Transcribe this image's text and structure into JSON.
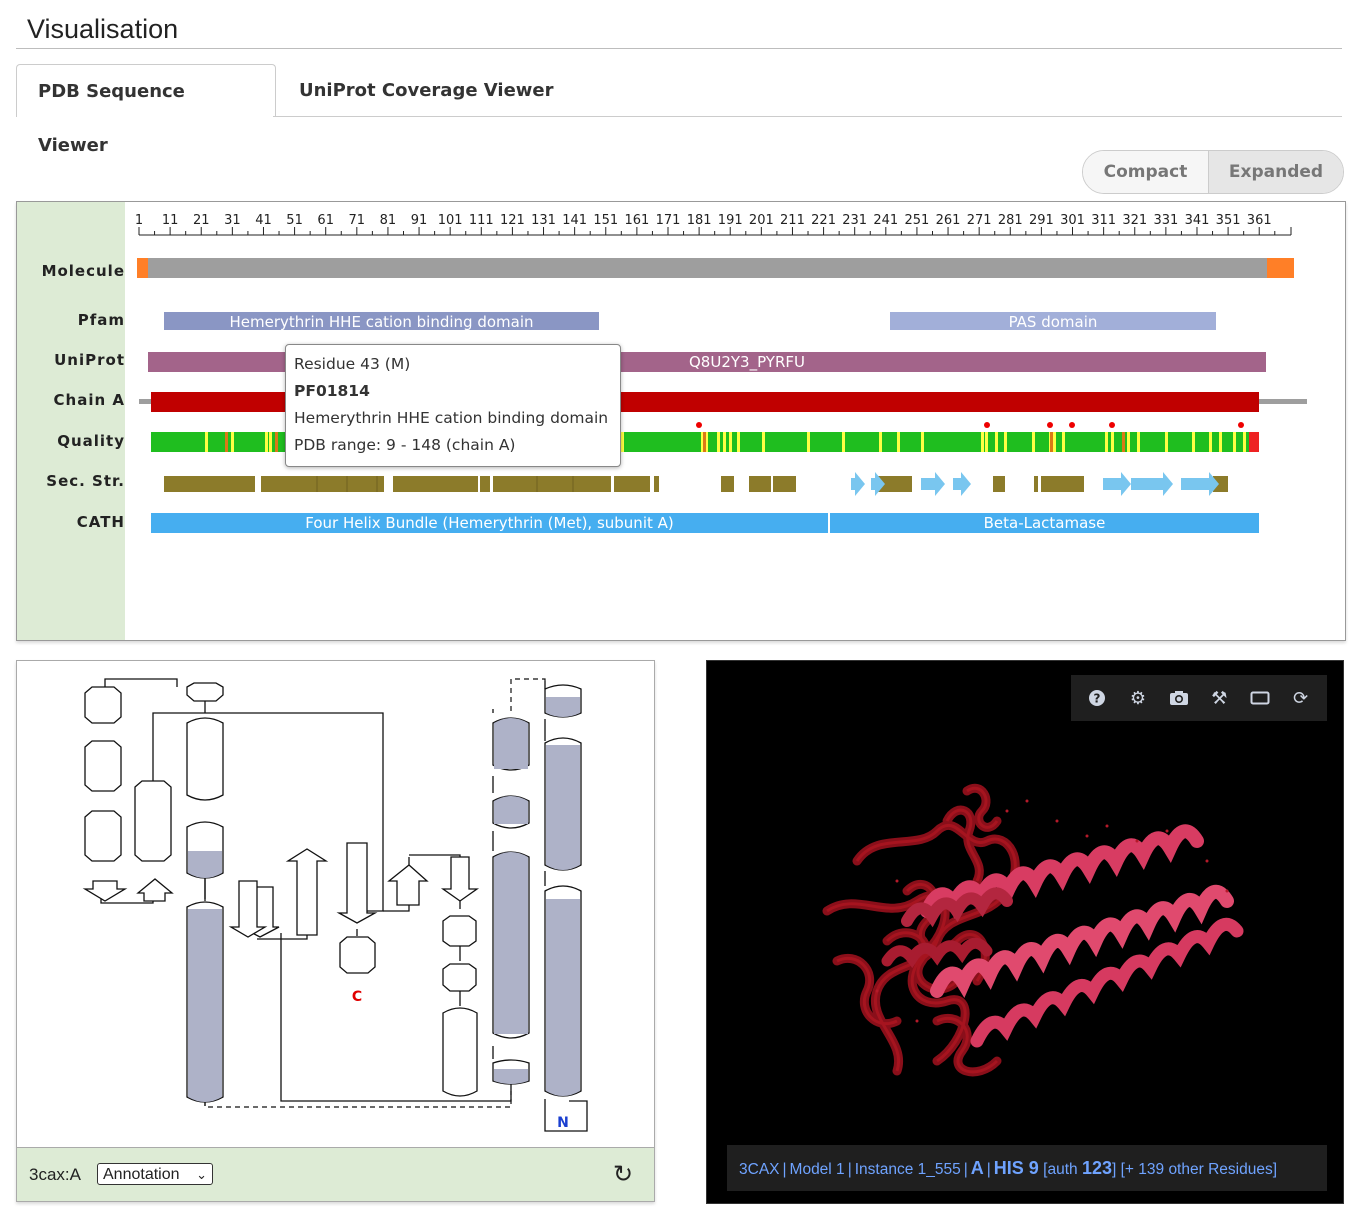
{
  "page": {
    "title": "Visualisation"
  },
  "tabs": [
    {
      "label": "PDB Sequence Viewer",
      "active": true
    },
    {
      "label": "UniProt Coverage Viewer",
      "active": false
    }
  ],
  "view_toggle": {
    "compact": "Compact",
    "expanded": "Expanded",
    "selected": "Compact"
  },
  "sequence_viewer": {
    "ruler_ticks": [
      "1",
      "11",
      "21",
      "31",
      "41",
      "51",
      "61",
      "71",
      "81",
      "91",
      "101",
      "111",
      "121",
      "131",
      "141",
      "151",
      "161",
      "171",
      "181",
      "191",
      "201",
      "211",
      "221",
      "231",
      "241",
      "251",
      "261",
      "271",
      "281",
      "291",
      "301",
      "311",
      "321",
      "331",
      "341",
      "351",
      "361"
    ],
    "tracks": {
      "molecule": "Molecule",
      "pfam": "Pfam",
      "uniprot": "UniProt",
      "chain": "Chain A",
      "quality": "Quality",
      "secstr": "Sec. Str.",
      "cath": "CATH"
    },
    "pfam_domains": [
      "Hemerythrin HHE cation binding domain",
      "PAS domain"
    ],
    "uniprot_label": "Q8U2Y3_PYRFU",
    "cath_domains": [
      "Four Helix Bundle (Hemerythrin (Met), subunit A)",
      "Beta-Lactamase"
    ],
    "colors": {
      "molecule": "#9e9e9e",
      "molecule_ends": "#ff7f27",
      "pfam": "#8a96c4",
      "pfam2": "#a2afd9",
      "uniprot": "#a3648a",
      "chain": "#c00000",
      "quality_good": "#1fbe1f",
      "quality_warn": "#ffff44",
      "quality_bad": "#e22",
      "helix": "#8c7b2a",
      "strand": "#79c6ef",
      "cath": "#46aef0"
    }
  },
  "tooltip": {
    "line1": "Residue 43 (M)",
    "line2": "PF01814",
    "line3": "Hemerythrin HHE cation binding domain",
    "line4": "PDB range: 9 - 148 (chain A)"
  },
  "topology": {
    "chain": "3cax:A",
    "select_value": "Annotation",
    "c_terminus": "C",
    "n_terminus": "N",
    "refresh_icon": "refresh-icon"
  },
  "molstar": {
    "toolbar": [
      "help-icon",
      "settings-icon",
      "camera-icon",
      "tools-icon",
      "fullscreen-icon",
      "reset-icon"
    ],
    "info": {
      "entry": "3CAX",
      "model": "Model 1",
      "instance": "Instance 1_555",
      "chain": "A",
      "residue": "HIS 9",
      "auth_prefix": "[auth",
      "auth_num": "123",
      "auth_suffix": "]",
      "other": "[+ 139 other Residues]"
    }
  }
}
